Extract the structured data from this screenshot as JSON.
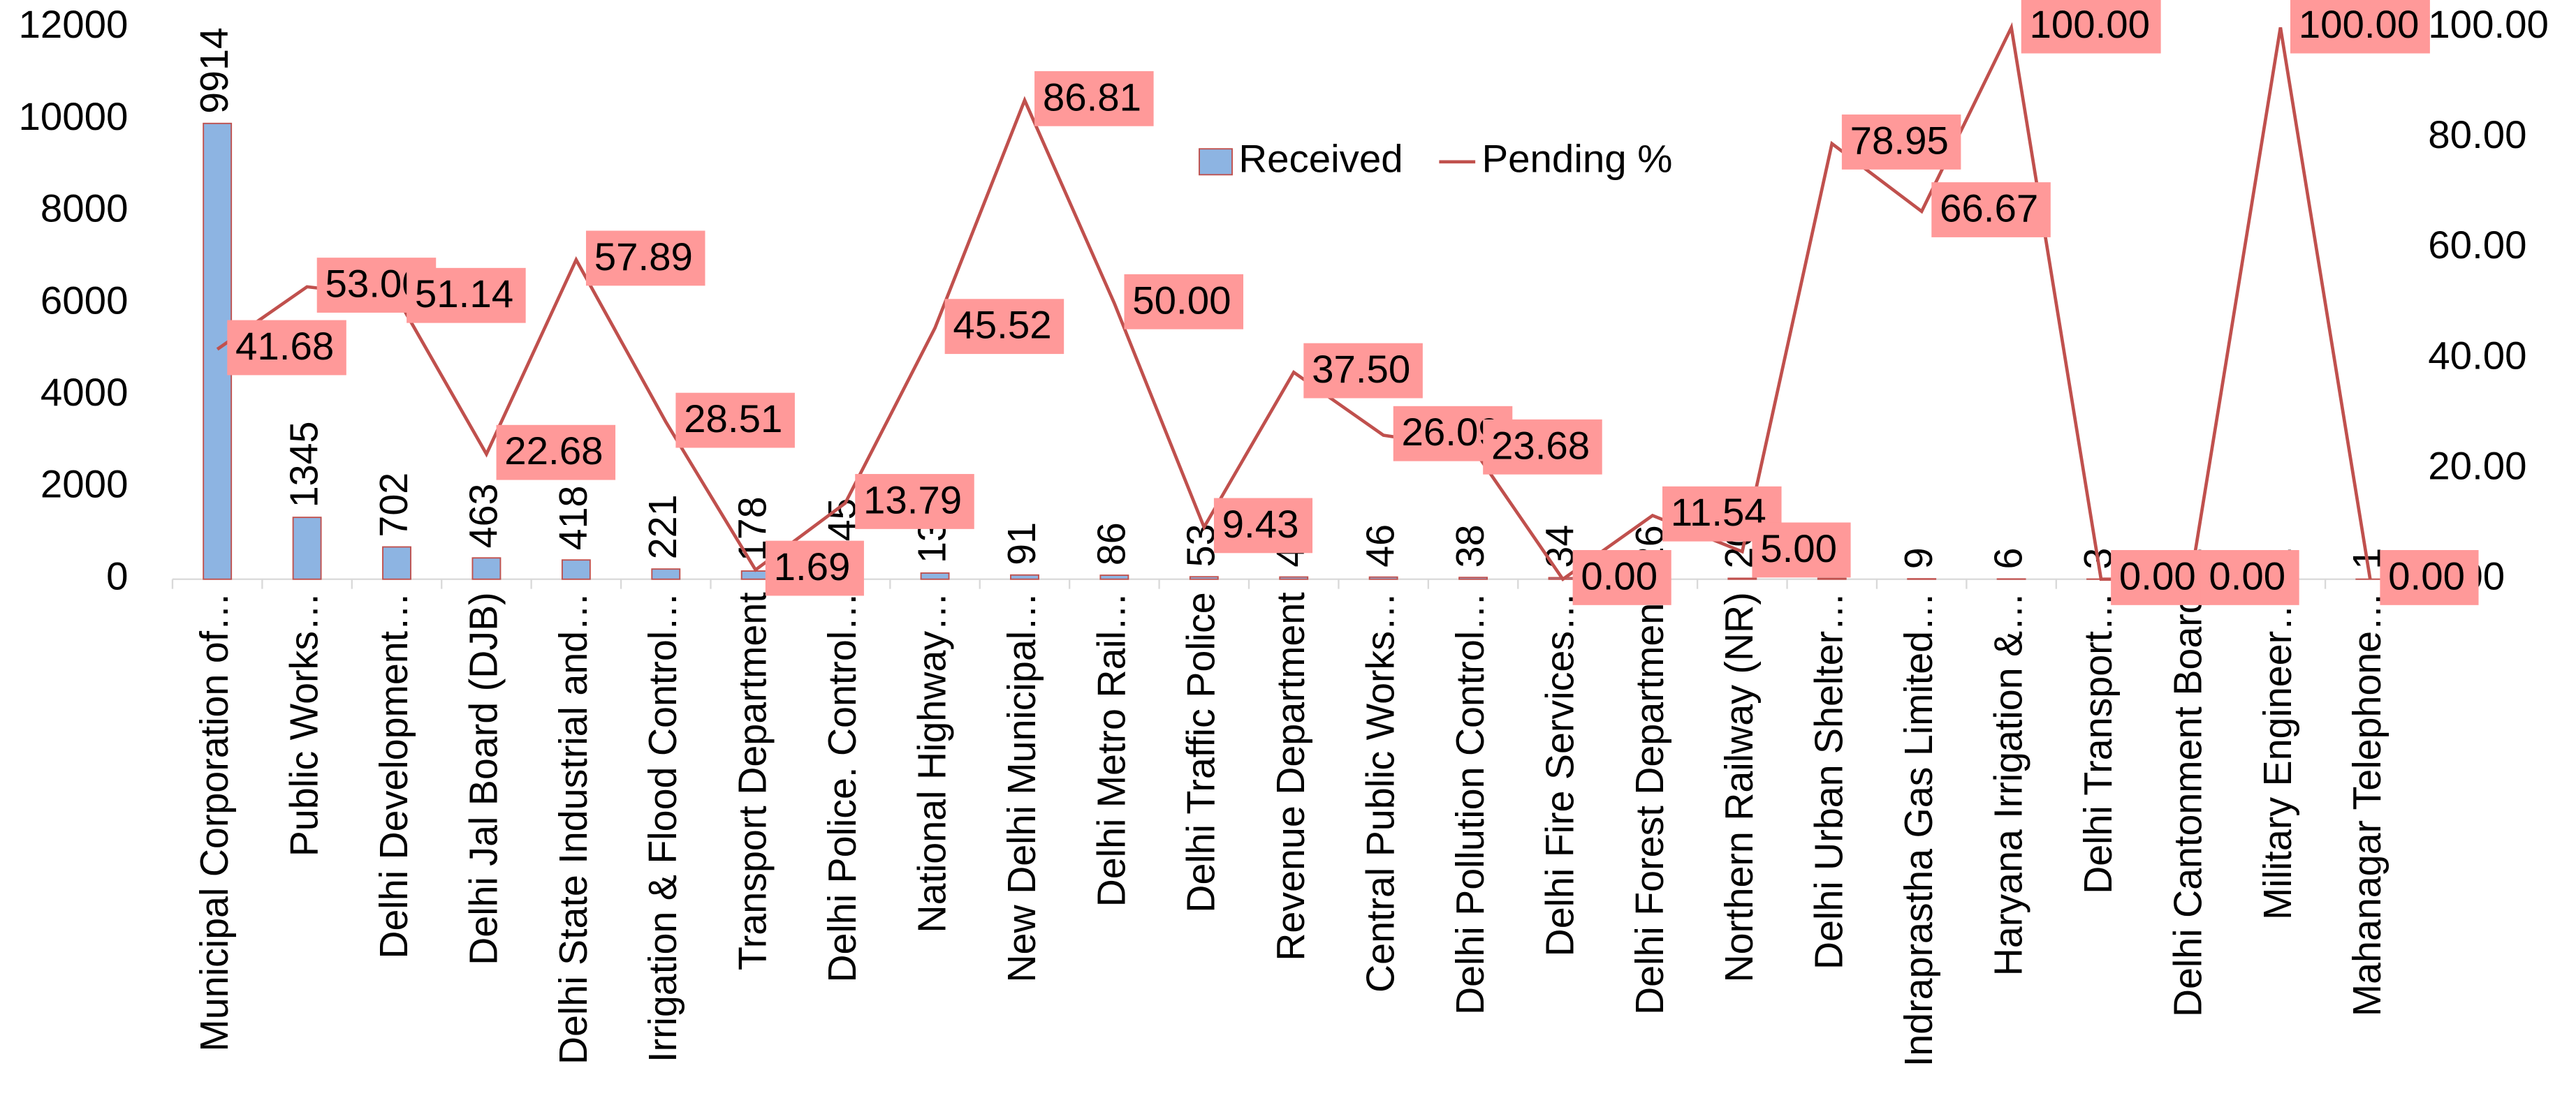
{
  "chart_data": {
    "type": "bar-line",
    "categories": [
      "Municipal Corporation of…",
      "Public Works…",
      "Delhi Development…",
      "Delhi Jal Board (DJB)",
      "Delhi State Industrial and…",
      "Irrigation & Flood Control…",
      "Transport Department",
      "Delhi Police. Control…",
      "National Highway…",
      "New Delhi Municipal…",
      "Delhi Metro Rail…",
      "Delhi Traffic Police",
      "Revenue Department",
      "Central Public Works…",
      "Delhi Pollution Control…",
      "Delhi Fire Services…",
      "Delhi Forest Department",
      "Northern Railway (NR)",
      "Delhi Urban Shelter…",
      "Indraprastha Gas Limited…",
      "Haryana Irrigation &…",
      "Delhi Transport…",
      "Delhi Cantonment Board",
      "Military Engineer…",
      "Mahanagar Telephone…"
    ],
    "series": [
      {
        "name": "Received",
        "type": "bar",
        "color": "#8db4e2",
        "values": [
          9914,
          1345,
          702,
          463,
          418,
          221,
          178,
          145,
          134,
          91,
          86,
          53,
          48,
          46,
          38,
          34,
          26,
          20,
          19,
          9,
          6,
          3,
          2,
          2,
          1
        ]
      },
      {
        "name": "Pending %",
        "type": "line",
        "axis": "y2",
        "color": "#c0504d",
        "values": [
          41.68,
          53.0,
          51.14,
          22.68,
          57.89,
          28.51,
          1.69,
          13.79,
          45.52,
          86.81,
          50.0,
          9.43,
          37.5,
          26.09,
          23.68,
          0,
          11.54,
          5.0,
          78.95,
          66.67,
          100,
          0,
          0,
          100,
          0
        ],
        "value_labels": [
          "41.68",
          "53.00",
          "51.14",
          "22.68",
          "57.89",
          "28.51",
          "1.69",
          "13.79",
          "45.52",
          "86.81",
          "50.00",
          "9.43",
          "37.50",
          "26.09",
          "23.68",
          "0.00",
          "11.54",
          "5.00",
          "78.95",
          "66.67",
          "100.00",
          "0.00",
          "0.00",
          "100.00",
          "0.00"
        ]
      }
    ],
    "ylim": [
      0,
      12000
    ],
    "yticks": [
      0,
      2000,
      4000,
      6000,
      8000,
      10000,
      12000
    ],
    "y2lim": [
      0,
      100
    ],
    "y2ticks": [
      {
        "value": 0,
        "label": "0.00"
      },
      {
        "value": 20,
        "label": "20.00"
      },
      {
        "value": 40,
        "label": "40.00"
      },
      {
        "value": 60,
        "label": "60.00"
      },
      {
        "value": 80,
        "label": "80.00"
      },
      {
        "value": 100,
        "label": "100.00"
      }
    ],
    "legend": "top"
  }
}
